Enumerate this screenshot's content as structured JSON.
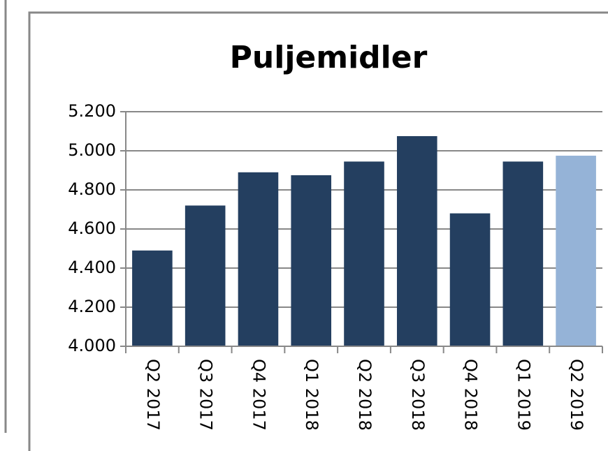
{
  "chart_data": {
    "type": "bar",
    "title": "Puljemidler",
    "categories": [
      "Q2 2017",
      "Q3 2017",
      "Q4 2017",
      "Q1 2018",
      "Q2 2018",
      "Q3 2018",
      "Q4 2018",
      "Q1 2019",
      "Q2 2019"
    ],
    "values": [
      4490,
      4720,
      4890,
      4875,
      4945,
      5075,
      4680,
      4945,
      4975
    ],
    "colors": [
      "#243f60",
      "#243f60",
      "#243f60",
      "#243f60",
      "#243f60",
      "#243f60",
      "#243f60",
      "#243f60",
      "#95b3d7"
    ],
    "ylim": [
      4000,
      5200
    ],
    "yticks": [
      {
        "value": 4000,
        "label": "4.000"
      },
      {
        "value": 4200,
        "label": "4.200"
      },
      {
        "value": 4400,
        "label": "4.400"
      },
      {
        "value": 4600,
        "label": "4.600"
      },
      {
        "value": 4800,
        "label": "4.800"
      },
      {
        "value": 5000,
        "label": "5.000"
      },
      {
        "value": 5200,
        "label": "5.200"
      }
    ],
    "grid": true
  }
}
